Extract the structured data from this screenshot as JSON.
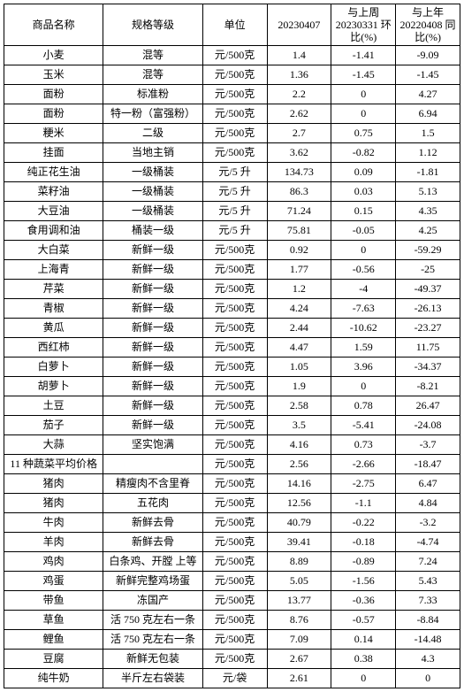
{
  "table": {
    "headers": [
      "商品名称",
      "规格等级",
      "单位",
      "20230407",
      "与上周\n20230331\n环比(%)",
      "与上年\n20220408\n同比(%)"
    ],
    "rows": [
      [
        "小麦",
        "混等",
        "元/500克",
        "1.4",
        "-1.41",
        "-9.09"
      ],
      [
        "玉米",
        "混等",
        "元/500克",
        "1.36",
        "-1.45",
        "-1.45"
      ],
      [
        "面粉",
        "标准粉",
        "元/500克",
        "2.2",
        "0",
        "4.27"
      ],
      [
        "面粉",
        "特一粉（富强粉）",
        "元/500克",
        "2.62",
        "0",
        "6.94"
      ],
      [
        "粳米",
        "二级",
        "元/500克",
        "2.7",
        "0.75",
        "1.5"
      ],
      [
        "挂面",
        "当地主销",
        "元/500克",
        "3.62",
        "-0.82",
        "1.12"
      ],
      [
        "纯正花生油",
        "一级桶装",
        "元/5 升",
        "134.73",
        "0.09",
        "-1.81"
      ],
      [
        "菜籽油",
        "一级桶装",
        "元/5 升",
        "86.3",
        "0.03",
        "5.13"
      ],
      [
        "大豆油",
        "一级桶装",
        "元/5 升",
        "71.24",
        "0.15",
        "4.35"
      ],
      [
        "食用调和油",
        "桶装一级",
        "元/5 升",
        "75.81",
        "-0.05",
        "4.25"
      ],
      [
        "大白菜",
        "新鲜一级",
        "元/500克",
        "0.92",
        "0",
        "-59.29"
      ],
      [
        "上海青",
        "新鲜一级",
        "元/500克",
        "1.77",
        "-0.56",
        "-25"
      ],
      [
        "芹菜",
        "新鲜一级",
        "元/500克",
        "1.2",
        "-4",
        "-49.37"
      ],
      [
        "青椒",
        "新鲜一级",
        "元/500克",
        "4.24",
        "-7.63",
        "-26.13"
      ],
      [
        "黄瓜",
        "新鲜一级",
        "元/500克",
        "2.44",
        "-10.62",
        "-23.27"
      ],
      [
        "西红柿",
        "新鲜一级",
        "元/500克",
        "4.47",
        "1.59",
        "11.75"
      ],
      [
        "白萝卜",
        "新鲜一级",
        "元/500克",
        "1.05",
        "3.96",
        "-34.37"
      ],
      [
        "胡萝卜",
        "新鲜一级",
        "元/500克",
        "1.9",
        "0",
        "-8.21"
      ],
      [
        "土豆",
        "新鲜一级",
        "元/500克",
        "2.58",
        "0.78",
        "26.47"
      ],
      [
        "茄子",
        "新鲜一级",
        "元/500克",
        "3.5",
        "-5.41",
        "-24.08"
      ],
      [
        "大蒜",
        "坚实饱满",
        "元/500克",
        "4.16",
        "0.73",
        "-3.7"
      ],
      [
        "11 种蔬菜平均价格",
        "",
        "元/500克",
        "2.56",
        "-2.66",
        "-18.47"
      ],
      [
        "猪肉",
        "精瘦肉不含里脊",
        "元/500克",
        "14.16",
        "-2.75",
        "6.47"
      ],
      [
        "猪肉",
        "五花肉",
        "元/500克",
        "12.56",
        "-1.1",
        "4.84"
      ],
      [
        "牛肉",
        "新鲜去骨",
        "元/500克",
        "40.79",
        "-0.22",
        "-3.2"
      ],
      [
        "羊肉",
        "新鲜去骨",
        "元/500克",
        "39.41",
        "-0.18",
        "-4.74"
      ],
      [
        "鸡肉",
        "白条鸡、开膛 上等",
        "元/500克",
        "8.89",
        "-0.89",
        "7.24"
      ],
      [
        "鸡蛋",
        "新鲜完整鸡场蛋",
        "元/500克",
        "5.05",
        "-1.56",
        "5.43"
      ],
      [
        "带鱼",
        "冻国产",
        "元/500克",
        "13.77",
        "-0.36",
        "7.33"
      ],
      [
        "草鱼",
        "活 750 克左右一条",
        "元/500克",
        "8.76",
        "-0.57",
        "-8.84"
      ],
      [
        "鲤鱼",
        "活 750 克左右一条",
        "元/500克",
        "7.09",
        "0.14",
        "-14.48"
      ],
      [
        "豆腐",
        "新鲜无包装",
        "元/500克",
        "2.67",
        "0.38",
        "4.3"
      ],
      [
        "纯牛奶",
        "半斤左右袋装",
        "元/袋",
        "2.61",
        "0",
        "0"
      ]
    ]
  }
}
